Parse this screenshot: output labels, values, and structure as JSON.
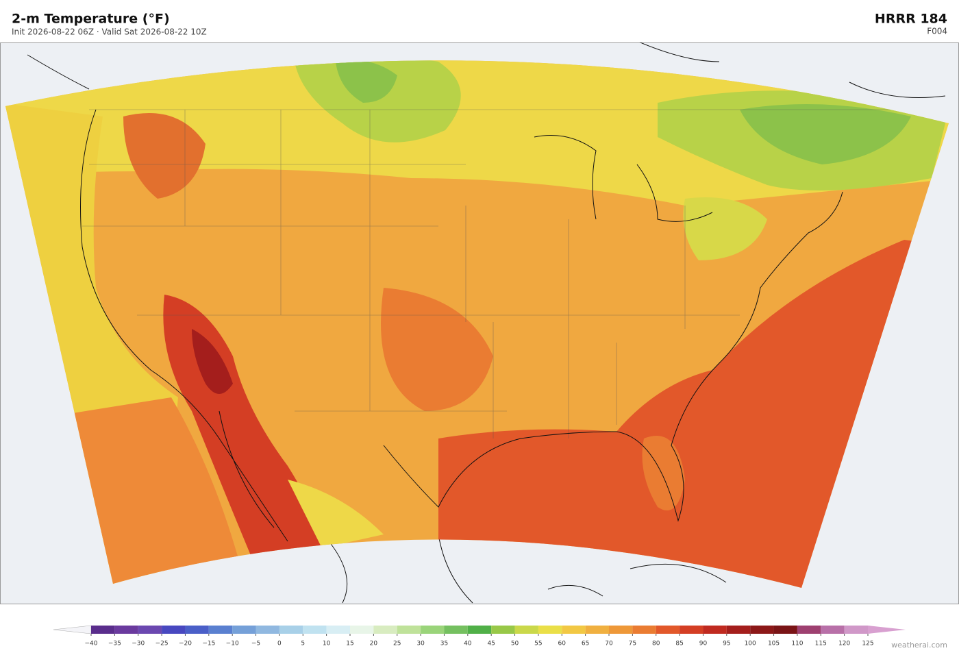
{
  "header": {
    "title": "2-m Temperature  (°F)",
    "subtitle": "Init 2026-08-22 06Z  ·  Valid Sat 2026-08-22 10Z",
    "model": "HRRR  184",
    "forecast_hour": "F004"
  },
  "colorbar": {
    "range": [
      -40,
      125
    ],
    "ticks": [
      {
        "value": -40,
        "label": "−40"
      },
      {
        "value": -35,
        "label": "−35"
      },
      {
        "value": -30,
        "label": "−30"
      },
      {
        "value": -25,
        "label": "−25"
      },
      {
        "value": -20,
        "label": "−20"
      },
      {
        "value": -15,
        "label": "−15"
      },
      {
        "value": -10,
        "label": "−10"
      },
      {
        "value": -5,
        "label": "−5"
      },
      0,
      5,
      10,
      15,
      20,
      25,
      30,
      35,
      40,
      45,
      50,
      55,
      60,
      65,
      70,
      75,
      80,
      85,
      90,
      95,
      100,
      105,
      110,
      115,
      120,
      125
    ],
    "colors": [
      "#5a2d8c",
      "#6a3a9e",
      "#6b48b0",
      "#4848c0",
      "#4a5fc8",
      "#5a80d0",
      "#75a0d8",
      "#90b8e0",
      "#a8d0e8",
      "#c0e2f0",
      "#d8eef4",
      "#e8f5e8",
      "#d8ecc0",
      "#bfe29a",
      "#9ad47a",
      "#75c060",
      "#50b048",
      "#98c848",
      "#cad84a",
      "#eadf48",
      "#f2c844",
      "#f0b040",
      "#ee9838",
      "#ea7c32",
      "#e2582a",
      "#d43e24",
      "#c02a20",
      "#a41e1c",
      "#8c1818",
      "#7a1416",
      "#9e4070",
      "#b870a8",
      "#d098c8"
    ],
    "under_color": "#f4f4f8",
    "over_color": "#d8a0d0"
  },
  "footer": {
    "credit": "weatherai.com"
  }
}
